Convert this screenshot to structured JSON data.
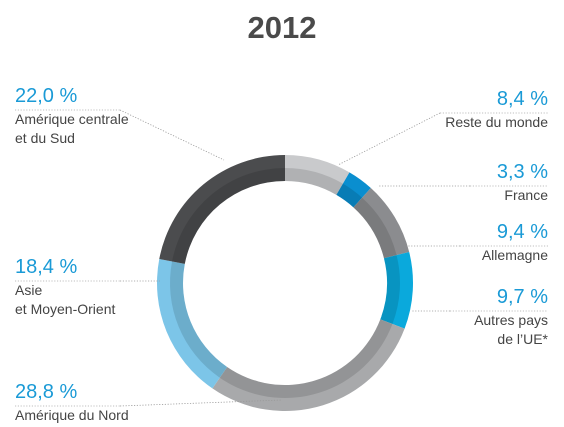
{
  "chart_data": {
    "type": "donut",
    "title": "2012",
    "categories": [
      "Reste du monde",
      "France",
      "Allemagne",
      "Autres pays\nde l’UE*",
      "Amérique du Nord",
      "Asie\net Moyen-Orient",
      "Amérique centrale\net du Sud"
    ],
    "values": [
      8.4,
      3.3,
      9.4,
      9.7,
      28.8,
      18.4,
      22.0
    ],
    "value_labels": [
      "8,4 %",
      "3,3 %",
      "9,4 %",
      "9,7 %",
      "28,8 %",
      "18,4 %",
      "22,0 %"
    ],
    "colors": [
      "#c9cacc",
      "#0a8ecf",
      "#8b8c8f",
      "#0aa9dc",
      "#a8a9ab",
      "#7cc5e8",
      "#4b4c4e"
    ]
  }
}
